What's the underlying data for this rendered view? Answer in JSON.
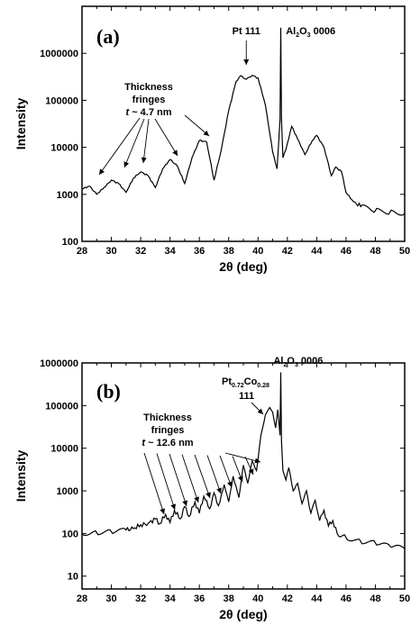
{
  "chart_data": [
    {
      "type": "line",
      "panel": "(a)",
      "xlabel": "2θ (deg)",
      "ylabel": "Intensity",
      "xlim": [
        28,
        50
      ],
      "ylim": [
        100,
        10000000
      ],
      "yscale": "log",
      "xticks": [
        28,
        30,
        32,
        34,
        36,
        38,
        40,
        42,
        44,
        46,
        48,
        50
      ],
      "yticks": [
        100,
        1000,
        10000,
        100000,
        1000000
      ],
      "ytick_labels": [
        "100",
        "1000",
        "10000",
        "100000",
        "1000000"
      ],
      "annotations": {
        "peak_label": "Pt 111",
        "substrate_label": {
          "main": "Al",
          "sub1": "2",
          "mid": "O",
          "sub2": "3",
          "tail": " 0006"
        },
        "fringes_line1": "Thickness",
        "fringes_line2": "fringes",
        "fringes_t": "t",
        "fringes_value": " ~ 4.7 nm"
      },
      "series": [
        {
          "x": [
            28.0,
            28.5,
            29.0,
            29.5,
            30.0,
            30.5,
            31.0,
            31.5,
            32.0,
            32.5,
            33.0,
            33.5,
            34.0,
            34.5,
            35.0,
            35.5,
            36.0,
            36.5,
            37.0,
            37.5,
            38.0,
            38.5,
            38.8,
            39.2,
            39.6,
            40.0,
            40.5,
            41.0,
            41.3,
            41.5,
            41.55,
            41.6,
            41.7,
            41.9,
            42.3,
            42.7,
            43.2,
            43.7,
            44.0,
            44.5,
            45.0,
            45.3,
            45.7,
            46.0,
            46.5,
            47.0,
            48.0,
            49.0,
            50.0
          ],
          "y": [
            1300,
            1500,
            1000,
            1400,
            2000,
            1700,
            1100,
            2200,
            3000,
            2500,
            1400,
            3500,
            5500,
            4000,
            1700,
            6000,
            14000,
            13000,
            2000,
            9000,
            60000,
            250000,
            330000,
            280000,
            340000,
            300000,
            80000,
            8000,
            3500,
            40000,
            3500000,
            40000,
            6000,
            9000,
            28000,
            15000,
            7000,
            14000,
            18000,
            10000,
            2500,
            3800,
            3000,
            1100,
            700,
            550,
            450,
            420,
            400
          ]
        }
      ]
    },
    {
      "type": "line",
      "panel": "(b)",
      "xlabel": "2θ (deg)",
      "ylabel": "Intensity",
      "xlim": [
        28,
        50
      ],
      "ylim": [
        5,
        1000000
      ],
      "yscale": "log",
      "xticks": [
        28,
        30,
        32,
        34,
        36,
        38,
        40,
        42,
        44,
        46,
        48,
        50
      ],
      "yticks": [
        10,
        100,
        1000,
        10000,
        100000,
        1000000
      ],
      "ytick_labels": [
        "10",
        "100",
        "1000",
        "10000",
        "100000",
        "1000000"
      ],
      "annotations": {
        "peak_label": {
          "main": "Pt",
          "sub1": "0.72",
          "mid": "Co",
          "sub2": "0.28",
          "line2": "111"
        },
        "substrate_label": {
          "main": "Al",
          "sub1": "2",
          "mid": "O",
          "sub2": "3",
          "tail": " 0006"
        },
        "fringes_line1": "Thickness",
        "fringes_line2": "fringes",
        "fringes_t": "t",
        "fringes_value": " ~ 12.6 nm"
      },
      "series": [
        {
          "x": [
            28.0,
            29.0,
            30.0,
            31.0,
            31.5,
            32.0,
            32.5,
            33.0,
            33.3,
            33.7,
            34.0,
            34.3,
            34.7,
            35.0,
            35.3,
            35.7,
            36.0,
            36.3,
            36.7,
            37.0,
            37.3,
            37.7,
            38.0,
            38.3,
            38.7,
            39.0,
            39.3,
            39.6,
            39.9,
            40.2,
            40.5,
            40.8,
            41.0,
            41.2,
            41.35,
            41.5,
            41.55,
            41.6,
            41.7,
            41.9,
            42.1,
            42.4,
            42.7,
            43.0,
            43.3,
            43.6,
            43.9,
            44.2,
            44.5,
            44.8,
            45.1,
            45.4,
            46.0,
            47.0,
            48.0,
            49.0,
            50.0
          ],
          "y": [
            100,
            105,
            110,
            120,
            130,
            160,
            170,
            220,
            170,
            280,
            180,
            350,
            220,
            430,
            250,
            550,
            300,
            750,
            380,
            900,
            450,
            1400,
            550,
            2200,
            700,
            4000,
            1500,
            5000,
            3000,
            20000,
            60000,
            90000,
            70000,
            30000,
            80000,
            20000,
            600000,
            15000,
            3000,
            1800,
            3500,
            1000,
            1500,
            500,
            1000,
            300,
            600,
            200,
            350,
            150,
            200,
            100,
            80,
            65,
            60,
            50,
            45
          ]
        }
      ]
    }
  ]
}
